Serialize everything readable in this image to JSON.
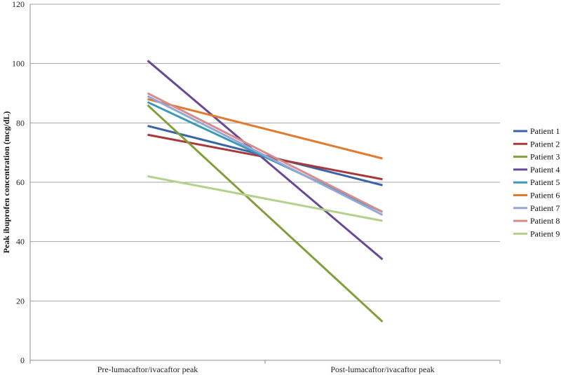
{
  "chart_data": {
    "type": "line",
    "title": "",
    "xlabel": "",
    "ylabel": "Peak ibuprofen concentration (mcg/dL)",
    "categories": [
      "Pre-lumacaftor/ivacaftor peak",
      "Post-lumacaftor/ivacaftor peak"
    ],
    "ylim": [
      0,
      120
    ],
    "yticks": [
      0,
      20,
      40,
      60,
      80,
      100,
      120
    ],
    "grid": true,
    "legend_position": "right",
    "series": [
      {
        "name": "Patient 1",
        "values": [
          79,
          59
        ],
        "color": "#3a64a8"
      },
      {
        "name": "Patient 2",
        "values": [
          76,
          61
        ],
        "color": "#a8383a"
      },
      {
        "name": "Patient 3",
        "values": [
          86,
          13
        ],
        "color": "#7fa03c"
      },
      {
        "name": "Patient 4",
        "values": [
          101,
          34
        ],
        "color": "#684a94"
      },
      {
        "name": "Patient 5",
        "values": [
          87,
          50
        ],
        "color": "#3a9ab8"
      },
      {
        "name": "Patient 6",
        "values": [
          88,
          68
        ],
        "color": "#e07b30"
      },
      {
        "name": "Patient 7",
        "values": [
          89,
          49
        ],
        "color": "#93a8d4"
      },
      {
        "name": "Patient 8",
        "values": [
          90,
          50
        ],
        "color": "#d88c8c"
      },
      {
        "name": "Patient 9",
        "values": [
          62,
          47
        ],
        "color": "#b3d18a"
      }
    ]
  }
}
